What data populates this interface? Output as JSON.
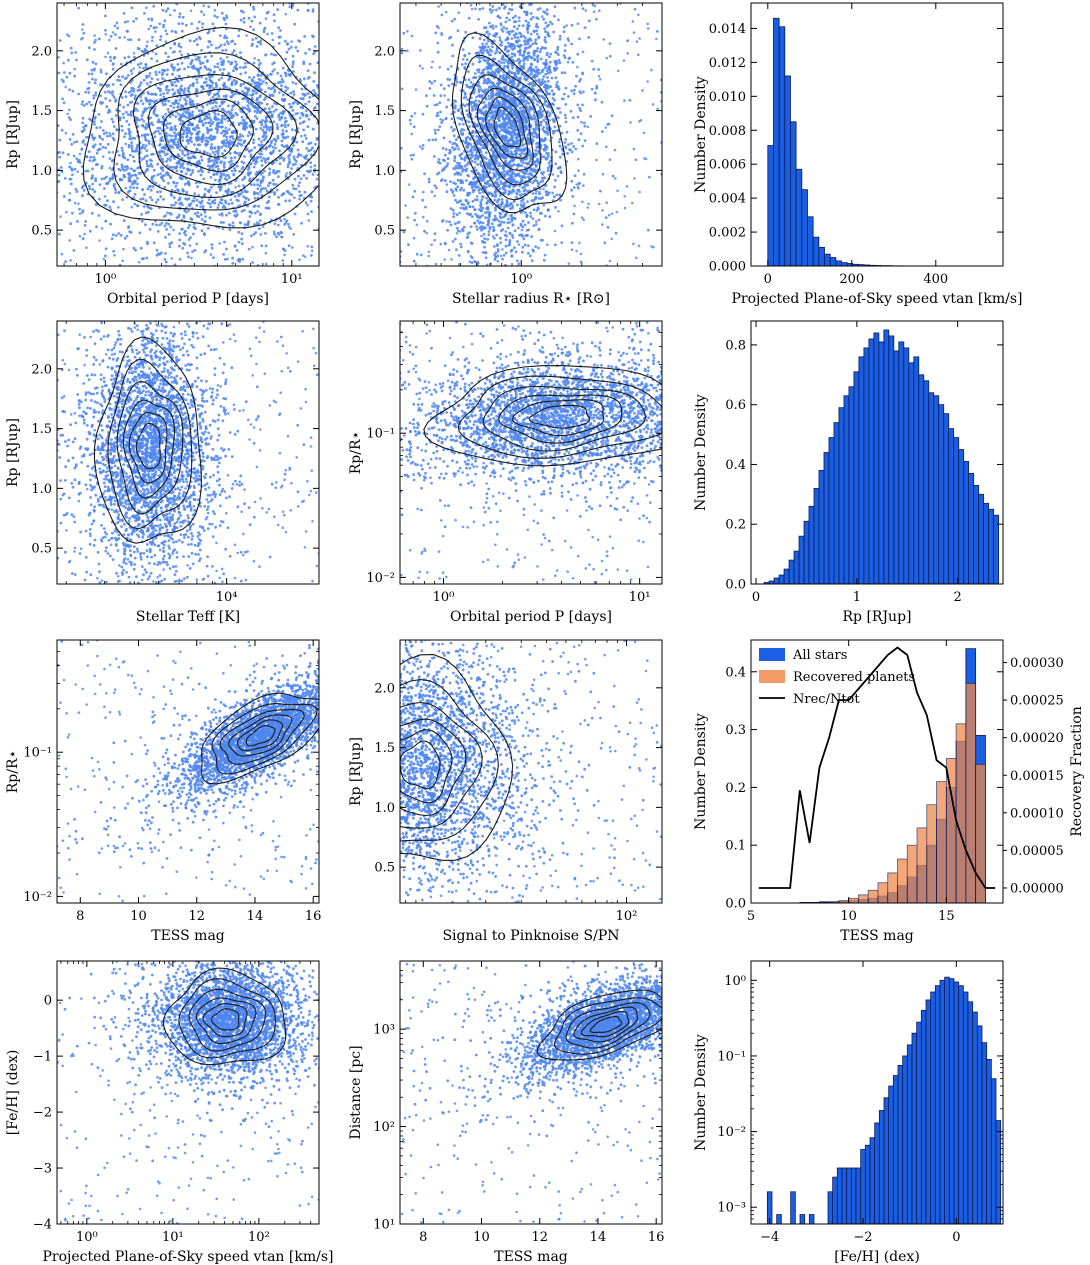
{
  "colors": {
    "scatter": "#4f86ee",
    "bar": "#1a5fe3",
    "bar_edge": "#0b1a55",
    "orange": "#f08a4b",
    "brown": "#b04e20",
    "contour": "#1a1a1a",
    "line": "#000000"
  },
  "panels": [
    {
      "id": "rp-vs-period",
      "type": "scatter",
      "xscale": "log",
      "yscale": "linear",
      "xlabel": "Orbital period P [days]",
      "ylabel": "Rp [RJup]",
      "xlim": [
        0.55,
        14
      ],
      "ylim": [
        0.2,
        2.4
      ],
      "xticks": [
        {
          "v": 1,
          "t": "10⁰"
        },
        {
          "v": 10,
          "t": "10¹"
        }
      ],
      "yticks": [
        {
          "v": 0.5,
          "t": "0.5"
        },
        {
          "v": 1.0,
          "t": "1.0"
        },
        {
          "v": 1.5,
          "t": "1.5"
        },
        {
          "v": 2.0,
          "t": "2.0"
        }
      ],
      "cloud": {
        "cx": 3.6,
        "cy": 1.3,
        "sx": 0.34,
        "sy": 0.42,
        "rho": 0.05
      }
    },
    {
      "id": "rp-vs-stellar-radius",
      "type": "scatter",
      "xscale": "log",
      "yscale": "linear",
      "xlabel": "Stellar radius R⋆ [R⊙]",
      "ylabel": "Rp [RJup]",
      "xlim": [
        0.25,
        5.0
      ],
      "ylim": [
        0.2,
        2.4
      ],
      "xticks": [
        {
          "v": 1,
          "t": "10⁰"
        }
      ],
      "yticks": [
        {
          "v": 0.5,
          "t": "0.5"
        },
        {
          "v": 1.0,
          "t": "1.0"
        },
        {
          "v": 1.5,
          "t": "1.5"
        },
        {
          "v": 2.0,
          "t": "2.0"
        }
      ],
      "cloud": {
        "cx": 0.85,
        "cy": 1.35,
        "sx": 0.12,
        "sy": 0.42,
        "rho": 0.2
      }
    },
    {
      "id": "hist-vtan",
      "type": "hist",
      "xlabel": "Projected Plane-of-Sky speed vtan [km/s]",
      "ylabel": "Number Density",
      "xlim": [
        -40,
        560
      ],
      "ylim": [
        0,
        0.0155
      ],
      "xticks": [
        {
          "v": 0,
          "t": "0"
        },
        {
          "v": 200,
          "t": "200"
        },
        {
          "v": 400,
          "t": "400"
        }
      ],
      "yticks": [
        {
          "v": 0,
          "t": "0.000"
        },
        {
          "v": 0.002,
          "t": "0.002"
        },
        {
          "v": 0.004,
          "t": "0.004"
        },
        {
          "v": 0.006,
          "t": "0.006"
        },
        {
          "v": 0.008,
          "t": "0.008"
        },
        {
          "v": 0.01,
          "t": "0.010"
        },
        {
          "v": 0.012,
          "t": "0.012"
        },
        {
          "v": 0.014,
          "t": "0.014"
        }
      ],
      "bin_start": 0,
      "bin_width": 13.5,
      "counts": [
        0.0071,
        0.0146,
        0.0141,
        0.0112,
        0.0085,
        0.0057,
        0.0045,
        0.0029,
        0.0017,
        0.0011,
        0.0007,
        0.0005,
        0.0003,
        0.0002,
        0.00015,
        0.0001,
        8e-05,
        6e-05,
        4e-05,
        3e-05,
        2e-05,
        2e-05,
        1e-05,
        1e-05
      ]
    },
    {
      "id": "rp-vs-teff",
      "type": "scatter",
      "xscale": "log",
      "yscale": "linear",
      "xlabel": "Stellar Teff [K]",
      "ylabel": "Rp [RJup]",
      "xlim": [
        2800,
        20000
      ],
      "ylim": [
        0.2,
        2.4
      ],
      "xticks": [
        {
          "v": 10000,
          "t": "10⁴"
        }
      ],
      "yticks": [
        {
          "v": 0.5,
          "t": "0.5"
        },
        {
          "v": 1.0,
          "t": "1.0"
        },
        {
          "v": 1.5,
          "t": "1.5"
        },
        {
          "v": 2.0,
          "t": "2.0"
        }
      ],
      "cloud": {
        "cx": 5600,
        "cy": 1.35,
        "sx": 0.085,
        "sy": 0.42,
        "rho": 0.0
      }
    },
    {
      "id": "ratio-vs-period",
      "type": "scatter",
      "xscale": "log",
      "yscale": "log",
      "xlabel": "Orbital period P [days]",
      "ylabel": "Rp/R⋆",
      "xlim": [
        0.6,
        13
      ],
      "ylim": [
        0.009,
        0.6
      ],
      "xticks": [
        {
          "v": 1,
          "t": "10⁰"
        },
        {
          "v": 10,
          "t": "10¹"
        }
      ],
      "yticks": [
        {
          "v": 0.01,
          "t": "10⁻²"
        },
        {
          "v": 0.1,
          "t": "10⁻¹"
        }
      ],
      "cloud": {
        "cx": 4.0,
        "cy": 0.13,
        "sx": 0.33,
        "sy": 0.18,
        "rho": 0.1
      }
    },
    {
      "id": "hist-rp",
      "type": "hist",
      "xlabel": "Rp [RJup]",
      "ylabel": "Number Density",
      "xlim": [
        -0.05,
        2.45
      ],
      "ylim": [
        0,
        0.88
      ],
      "xticks": [
        {
          "v": 0,
          "t": "0"
        },
        {
          "v": 1,
          "t": "1"
        },
        {
          "v": 2,
          "t": "2"
        }
      ],
      "yticks": [
        {
          "v": 0,
          "t": "0.0"
        },
        {
          "v": 0.2,
          "t": "0.2"
        },
        {
          "v": 0.4,
          "t": "0.4"
        },
        {
          "v": 0.6,
          "t": "0.6"
        },
        {
          "v": 0.8,
          "t": "0.8"
        }
      ],
      "bin_start": 0.08,
      "bin_width": 0.0495,
      "counts": [
        0.005,
        0.01,
        0.02,
        0.03,
        0.05,
        0.08,
        0.11,
        0.16,
        0.21,
        0.26,
        0.32,
        0.38,
        0.44,
        0.49,
        0.54,
        0.59,
        0.63,
        0.66,
        0.71,
        0.76,
        0.79,
        0.82,
        0.84,
        0.81,
        0.85,
        0.83,
        0.78,
        0.81,
        0.79,
        0.74,
        0.76,
        0.7,
        0.68,
        0.64,
        0.63,
        0.6,
        0.57,
        0.52,
        0.49,
        0.45,
        0.41,
        0.37,
        0.33,
        0.3,
        0.27,
        0.25,
        0.23
      ]
    },
    {
      "id": "ratio-vs-tessmag",
      "type": "scatter",
      "xscale": "linear",
      "yscale": "log",
      "xlabel": "TESS mag",
      "ylabel": "Rp/R⋆",
      "xlim": [
        7.2,
        16.2
      ],
      "ylim": [
        0.009,
        0.6
      ],
      "xticks": [
        {
          "v": 8,
          "t": "8"
        },
        {
          "v": 10,
          "t": "10"
        },
        {
          "v": 12,
          "t": "12"
        },
        {
          "v": 14,
          "t": "14"
        },
        {
          "v": 16,
          "t": "16"
        }
      ],
      "yticks": [
        {
          "v": 0.01,
          "t": "10⁻²"
        },
        {
          "v": 0.1,
          "t": "10⁻¹"
        }
      ],
      "cloud": {
        "cx": 14.2,
        "cy": 0.13,
        "sx": 1.2,
        "sy": 0.17,
        "rho": 0.75
      }
    },
    {
      "id": "rp-vs-snr",
      "type": "scatter",
      "xscale": "log",
      "yscale": "linear",
      "xlabel": "Signal to Pinknoise S/PN",
      "ylabel": "Rp [RJup]",
      "xlim": [
        7.5,
        150
      ],
      "ylim": [
        0.2,
        2.4
      ],
      "xticks": [
        {
          "v": 100,
          "t": "10²"
        }
      ],
      "yticks": [
        {
          "v": 0.5,
          "t": "0.5"
        },
        {
          "v": 1.0,
          "t": "1.0"
        },
        {
          "v": 1.5,
          "t": "1.5"
        },
        {
          "v": 2.0,
          "t": "2.0"
        }
      ],
      "cloud": {
        "cx": 9.5,
        "cy": 1.35,
        "sx": 0.22,
        "sy": 0.42,
        "rho": 0.0
      }
    },
    {
      "id": "hist-tessmag",
      "type": "hist-dual",
      "xlabel": "TESS mag",
      "ylabel": "Number Density",
      "y2label": "Recovery Fraction",
      "xlim": [
        5.0,
        17.9
      ],
      "ylim": [
        0,
        0.455
      ],
      "y2lim": [
        -2e-05,
        0.00033
      ],
      "xticks": [
        {
          "v": 5,
          "t": "5"
        },
        {
          "v": 10,
          "t": "10"
        },
        {
          "v": 15,
          "t": "15"
        }
      ],
      "yticks": [
        {
          "v": 0,
          "t": "0.0"
        },
        {
          "v": 0.1,
          "t": "0.1"
        },
        {
          "v": 0.2,
          "t": "0.2"
        },
        {
          "v": 0.3,
          "t": "0.3"
        },
        {
          "v": 0.4,
          "t": "0.4"
        }
      ],
      "y2ticks": [
        {
          "v": 0,
          "t": "0.00000"
        },
        {
          "v": 5e-05,
          "t": "0.00005"
        },
        {
          "v": 0.0001,
          "t": "0.00010"
        },
        {
          "v": 0.00015,
          "t": "0.00015"
        },
        {
          "v": 0.0002,
          "t": "0.00020"
        },
        {
          "v": 0.00025,
          "t": "0.00025"
        },
        {
          "v": 0.0003,
          "t": "0.00030"
        }
      ],
      "bin_start": 7.5,
      "bin_width": 0.5,
      "all_stars": [
        0.001,
        0.001,
        0.002,
        0.002,
        0.003,
        0.004,
        0.006,
        0.008,
        0.012,
        0.018,
        0.03,
        0.045,
        0.065,
        0.1,
        0.145,
        0.2,
        0.28,
        0.44,
        0.29,
        0.0,
        0.0
      ],
      "recovered": [
        0.0,
        0.0,
        0.001,
        0.002,
        0.004,
        0.008,
        0.014,
        0.022,
        0.035,
        0.052,
        0.076,
        0.1,
        0.13,
        0.17,
        0.21,
        0.25,
        0.31,
        0.38,
        0.24,
        0.0,
        0.0
      ],
      "ratio_x": [
        5.4,
        7.0,
        7.5,
        8.0,
        8.5,
        9.0,
        9.5,
        10.0,
        11.0,
        12.0,
        12.5,
        13.0,
        13.5,
        14.0,
        14.5,
        15.0,
        15.5,
        16.0,
        16.5,
        17.0,
        17.5
      ],
      "ratio_y": [
        0.0,
        0.0,
        0.00013,
        6e-05,
        0.00016,
        0.0002,
        0.00025,
        0.00025,
        0.00028,
        0.00031,
        0.00032,
        0.00031,
        0.00026,
        0.00023,
        0.00017,
        0.00016,
        9e-05,
        5e-05,
        2e-05,
        0.0,
        0.0
      ],
      "legend": [
        {
          "label": "All stars",
          "kind": "bar"
        },
        {
          "label": "Recovered planets",
          "kind": "orange"
        },
        {
          "label": "Nrec/Ntot",
          "kind": "line"
        }
      ]
    },
    {
      "id": "feh-vs-vtan",
      "type": "scatter",
      "xscale": "log",
      "yscale": "linear",
      "xlabel": "Projected Plane-of-Sky speed vtan [km/s]",
      "ylabel": "[Fe/H] (dex)",
      "xlim": [
        0.45,
        500
      ],
      "ylim": [
        -4.0,
        0.7
      ],
      "xticks": [
        {
          "v": 1,
          "t": "10⁰"
        },
        {
          "v": 10,
          "t": "10¹"
        },
        {
          "v": 100,
          "t": "10²"
        }
      ],
      "yticks": [
        {
          "v": -4,
          "t": "−4"
        },
        {
          "v": -3,
          "t": "−3"
        },
        {
          "v": -2,
          "t": "−2"
        },
        {
          "v": -1,
          "t": "−1"
        },
        {
          "v": 0,
          "t": "0"
        }
      ],
      "cloud": {
        "cx": 42,
        "cy": -0.35,
        "sx": 0.35,
        "sy": 0.42,
        "rho": 0.0
      }
    },
    {
      "id": "distance-vs-tessmag",
      "type": "scatter",
      "xscale": "linear",
      "yscale": "log",
      "xlabel": "TESS mag",
      "ylabel": "Distance [pc]",
      "xlim": [
        7.2,
        16.2
      ],
      "ylim": [
        10,
        5000
      ],
      "xticks": [
        {
          "v": 8,
          "t": "8"
        },
        {
          "v": 10,
          "t": "10"
        },
        {
          "v": 12,
          "t": "12"
        },
        {
          "v": 14,
          "t": "14"
        },
        {
          "v": 16,
          "t": "16"
        }
      ],
      "yticks": [
        {
          "v": 10,
          "t": "10¹"
        },
        {
          "v": 100,
          "t": "10²"
        },
        {
          "v": 1000,
          "t": "10³"
        }
      ],
      "cloud": {
        "cx": 14.3,
        "cy": 1100,
        "sx": 1.2,
        "sy": 0.2,
        "rho": 0.6
      }
    },
    {
      "id": "hist-feh",
      "type": "hist-log",
      "xlabel": "[Fe/H] (dex)",
      "ylabel": "Number Density",
      "xlim": [
        -4.4,
        1.0
      ],
      "ylim": [
        0.0006,
        1.8
      ],
      "xticks": [
        {
          "v": -4,
          "t": "−4"
        },
        {
          "v": -2,
          "t": "−2"
        },
        {
          "v": 0,
          "t": "0"
        }
      ],
      "yticks": [
        {
          "v": 0.001,
          "t": "10⁻³"
        },
        {
          "v": 0.01,
          "t": "10⁻²"
        },
        {
          "v": 0.1,
          "t": "10⁻¹"
        },
        {
          "v": 1,
          "t": "10⁰"
        }
      ],
      "bin_start": -4.05,
      "bin_width": 0.1,
      "counts": [
        0.0016,
        0.0,
        0.0008,
        0.0,
        0.0,
        0.0016,
        0.0,
        0.0008,
        0.0,
        0.0008,
        0.0,
        0.0,
        0.0,
        0.0016,
        0.0025,
        0.0033,
        0.0033,
        0.0033,
        0.0033,
        0.0033,
        0.0058,
        0.0066,
        0.0083,
        0.013,
        0.019,
        0.028,
        0.04,
        0.055,
        0.075,
        0.1,
        0.14,
        0.2,
        0.28,
        0.4,
        0.55,
        0.7,
        0.85,
        1.0,
        1.1,
        1.05,
        0.95,
        0.85,
        0.7,
        0.52,
        0.38,
        0.25,
        0.15,
        0.09,
        0.05,
        0.014
      ]
    }
  ]
}
